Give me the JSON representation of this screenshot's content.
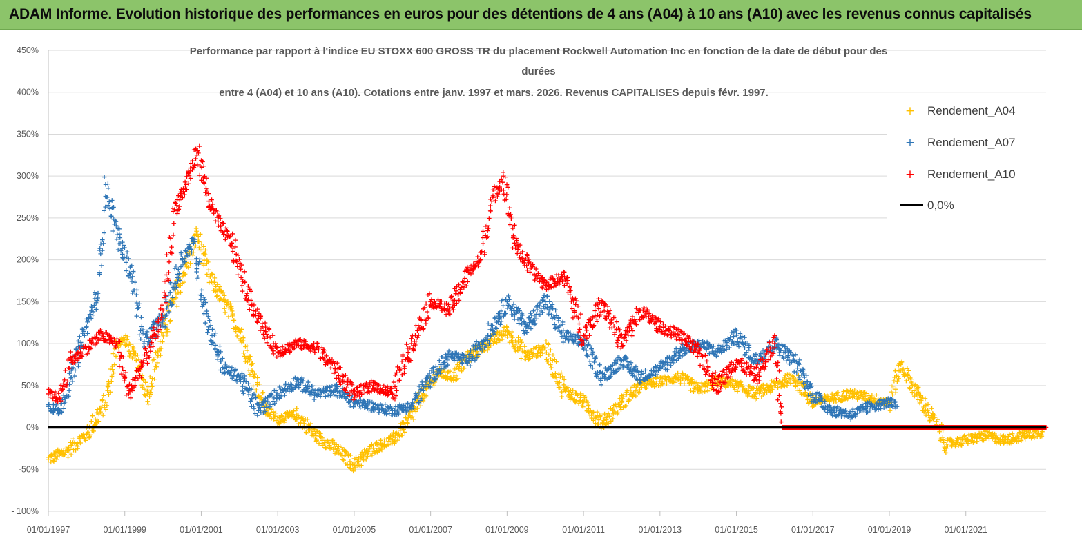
{
  "banner": {
    "title": "ADAM Informe. Evolution historique des performances en euros pour des détentions de 4 ans (A04) à 10 ans (A10) avec les revenus connus capitalisés"
  },
  "chart_data": {
    "type": "scatter",
    "title_lines": [
      "Performance par rapport à l'indice EU STOXX 600 GROSS TR  du placement Rockwell Automation Inc en fonction de la date de début pour des",
      "durées",
      "entre 4 (A04) et 10 ans (A10). Cotations entre janv. 1997 et mars. 2026. Revenus CAPITALISES depuis févr. 1997."
    ],
    "y_ticks": [
      "450%",
      "400%",
      "350%",
      "300%",
      "250%",
      "200%",
      "150%",
      "100%",
      "50%",
      "0%",
      "-50%",
      "- 100%"
    ],
    "ylim": [
      -100,
      450
    ],
    "x_ticks": [
      "01/01/1997",
      "01/01/1999",
      "01/01/2001",
      "01/01/2003",
      "01/01/2005",
      "01/01/2007",
      "01/01/2009",
      "01/01/2011",
      "01/01/2013",
      "01/01/2015",
      "01/01/2017",
      "01/01/2019",
      "01/01/2021"
    ],
    "xlim": [
      1997.0,
      2023.1
    ],
    "legend": {
      "placement": "top-right",
      "entries": [
        {
          "label": "Rendement_A04",
          "color": "#ffc000",
          "marker": "+"
        },
        {
          "label": "Rendement_A07",
          "color": "#2e75b6",
          "marker": "+"
        },
        {
          "label": "Rendement_A10",
          "color": "#ff0000",
          "marker": "+"
        },
        {
          "label": "0,0%",
          "color": "#000000",
          "marker": "line"
        }
      ]
    },
    "series": [
      {
        "name": "Rendement_A04",
        "color": "#ffc000",
        "x": [
          1997.0,
          1997.5,
          1998.0,
          1998.5,
          1998.8,
          1999.0,
          1999.3,
          1999.6,
          2000.0,
          2000.5,
          2000.9,
          2001.2,
          2001.6,
          2002.0,
          2002.4,
          2002.7,
          2003.0,
          2003.5,
          2004.0,
          2004.5,
          2005.0,
          2005.5,
          2006.0,
          2006.4,
          2006.8,
          2007.2,
          2007.6,
          2008.0,
          2008.5,
          2009.0,
          2009.5,
          2010.0,
          2010.5,
          2011.0,
          2011.5,
          2012.0,
          2012.5,
          2013.0,
          2013.5,
          2014.0,
          2014.5,
          2015.0,
          2015.5,
          2016.0,
          2016.5,
          2017.0,
          2017.5,
          2018.0,
          2018.5,
          2019.0,
          2019.3,
          2019.6,
          2020.0,
          2020.5,
          2021.0,
          2021.5,
          2022.0,
          2022.5,
          2023.0
        ],
        "y": [
          -38,
          -28,
          -8,
          30,
          100,
          105,
          80,
          40,
          110,
          180,
          230,
          180,
          150,
          115,
          60,
          20,
          10,
          15,
          -10,
          -25,
          -45,
          -25,
          -15,
          5,
          40,
          65,
          60,
          85,
          100,
          115,
          85,
          95,
          45,
          30,
          5,
          30,
          50,
          55,
          60,
          45,
          55,
          50,
          40,
          50,
          60,
          30,
          35,
          40,
          35,
          30,
          75,
          50,
          20,
          -20,
          -15,
          -10,
          -15,
          -10,
          -5
        ]
      },
      {
        "name": "Rendement_A07",
        "color": "#2e75b6",
        "x": [
          1997.0,
          1997.3,
          1997.6,
          1998.0,
          1998.3,
          1998.5,
          1998.8,
          1999.2,
          1999.5,
          2000.0,
          2000.5,
          2000.8,
          2001.2,
          2001.6,
          2002.0,
          2002.5,
          2003.0,
          2003.5,
          2004.0,
          2004.5,
          2005.0,
          2005.5,
          2006.0,
          2006.5,
          2007.0,
          2007.5,
          2008.0,
          2008.5,
          2009.0,
          2009.5,
          2010.0,
          2010.5,
          2011.0,
          2011.5,
          2012.0,
          2012.5,
          2013.0,
          2013.5,
          2014.0,
          2014.5,
          2015.0,
          2015.5,
          2016.0,
          2016.5,
          2017.0,
          2017.5,
          2018.0,
          2018.5,
          2019.0,
          2019.2
        ],
        "y": [
          25,
          20,
          60,
          120,
          160,
          290,
          230,
          180,
          100,
          130,
          200,
          220,
          120,
          70,
          60,
          20,
          40,
          55,
          40,
          45,
          30,
          25,
          20,
          25,
          60,
          85,
          80,
          110,
          150,
          120,
          150,
          110,
          100,
          60,
          80,
          60,
          70,
          90,
          100,
          90,
          110,
          80,
          100,
          80,
          40,
          20,
          15,
          25,
          30,
          25
        ]
      },
      {
        "name": "Rendement_A10",
        "color": "#ff0000",
        "x": [
          1997.0,
          1997.3,
          1997.6,
          1998.0,
          1998.4,
          1998.8,
          1999.1,
          1999.4,
          1999.8,
          2000.0,
          2000.3,
          2000.6,
          2000.9,
          2001.2,
          2001.5,
          2001.8,
          2002.2,
          2002.6,
          2003.0,
          2003.5,
          2004.0,
          2004.5,
          2005.0,
          2005.5,
          2006.0,
          2006.5,
          2007.0,
          2007.5,
          2008.0,
          2008.3,
          2008.6,
          2008.9,
          2009.2,
          2009.6,
          2010.0,
          2010.5,
          2011.0,
          2011.5,
          2012.0,
          2012.5,
          2013.0,
          2013.5,
          2014.0,
          2014.5,
          2015.0,
          2015.5,
          2016.0,
          2016.2,
          2023.1
        ],
        "y": [
          40,
          35,
          80,
          95,
          110,
          100,
          40,
          70,
          110,
          140,
          260,
          290,
          330,
          270,
          240,
          220,
          160,
          120,
          90,
          100,
          95,
          70,
          40,
          50,
          40,
          100,
          150,
          140,
          185,
          200,
          270,
          300,
          220,
          190,
          170,
          180,
          110,
          150,
          100,
          140,
          120,
          110,
          90,
          50,
          80,
          60,
          100,
          0,
          0
        ]
      }
    ]
  }
}
